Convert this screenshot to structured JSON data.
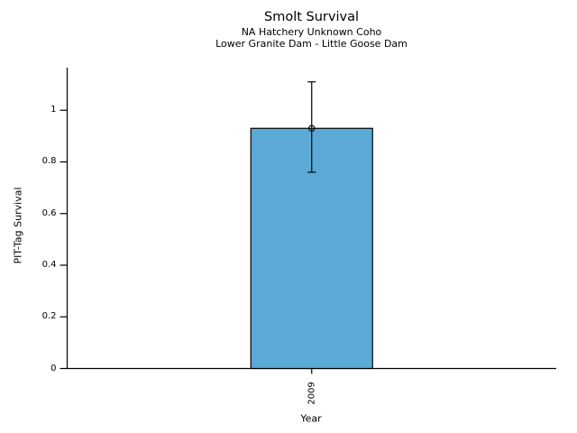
{
  "chart_data": {
    "type": "bar",
    "title": "Smolt Survival",
    "subtitle1": "NA Hatchery Unknown Coho",
    "subtitle2": "Lower Granite Dam - Little Goose Dam",
    "xlabel": "Year",
    "ylabel": "PIT-Tag Survival",
    "categories": [
      "2009"
    ],
    "values": [
      0.93
    ],
    "error_bars": [
      {
        "lower": 0.76,
        "upper": 1.11
      }
    ],
    "ytick_values": [
      0,
      0.2,
      0.4,
      0.6,
      0.8,
      1
    ],
    "ytick_labels": [
      "0",
      "0.2",
      "0.4",
      "0.6",
      "0.8",
      "1"
    ],
    "ylim": [
      0,
      1.165
    ],
    "grid": false,
    "legend": false,
    "marker": "open-circle",
    "colors": {
      "bar_fill": "#5BA9D6",
      "bar_edge": "#000000",
      "error_bar": "#000000",
      "axis": "#000000",
      "text": "#000000",
      "background": "#FFFFFF"
    }
  }
}
